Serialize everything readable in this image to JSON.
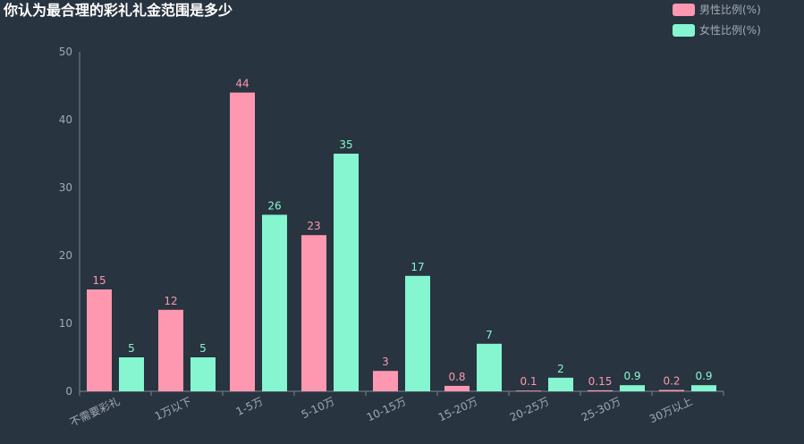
{
  "chart_data": {
    "type": "bar",
    "title": "你认为最合理的彩礼礼金范围是多少",
    "categories": [
      "不需要彩礼",
      "1万以下",
      "1-5万",
      "5-10万",
      "10-15万",
      "15-20万",
      "20-25万",
      "25-30万",
      "30万以上"
    ],
    "series": [
      {
        "name": "男性比例(%)",
        "color": "#fd98b0",
        "values": [
          15,
          12,
          44,
          23,
          3,
          0.8,
          0.1,
          0.15,
          0.2
        ]
      },
      {
        "name": "女性比例(%)",
        "color": "#85f6cf",
        "values": [
          5,
          5,
          26,
          35,
          17,
          7,
          2,
          0.9,
          0.9
        ]
      }
    ],
    "ylim": [
      0,
      50
    ],
    "yticks": [
      0,
      10,
      20,
      30,
      40,
      50
    ],
    "grid": false,
    "legend_position": "top-right",
    "data_labels": true,
    "colors": {
      "background": "#283440",
      "axis": "#7a8590",
      "tick_label": "#a3aab2",
      "title": "#ffffff"
    }
  }
}
